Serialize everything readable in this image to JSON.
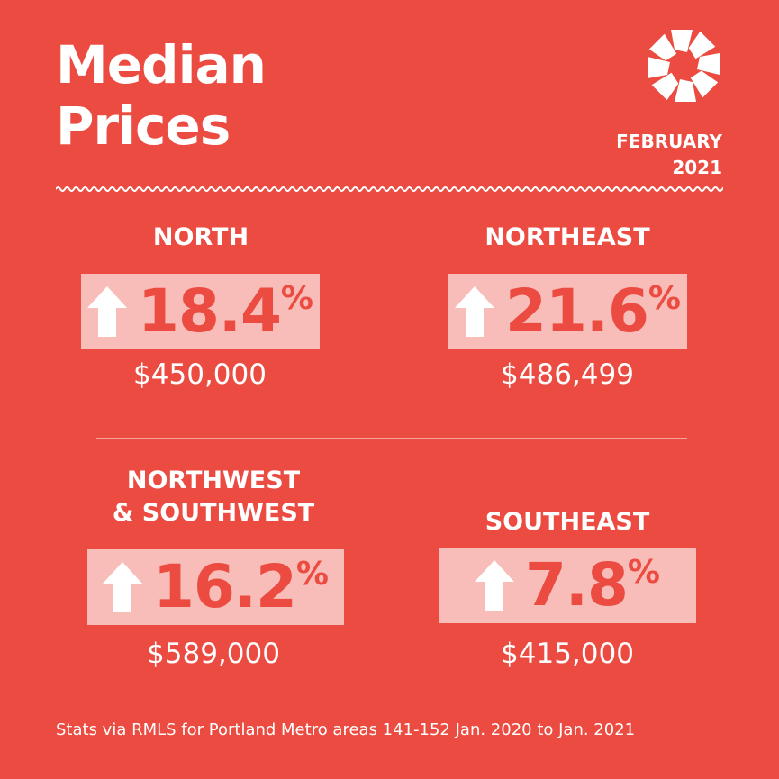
{
  "title": {
    "line1": "Median",
    "line2": "Prices"
  },
  "date": {
    "month": "FEBRUARY",
    "year": "2021"
  },
  "regions": [
    {
      "name": "NORTH",
      "change": "18.4",
      "percent_sign": "%",
      "price": "$450,000"
    },
    {
      "name": "NORTHEAST",
      "change": "21.6",
      "percent_sign": "%",
      "price": "$486,499"
    },
    {
      "name_line1": "NORTHWEST",
      "name_line2": "& SOUTHWEST",
      "change": "16.2",
      "percent_sign": "%",
      "price": "$589,000"
    },
    {
      "name": "SOUTHEAST",
      "change": "7.8",
      "percent_sign": "%",
      "price": "$415,000"
    }
  ],
  "footer": "Stats via RMLS for Portland Metro areas 141-152 Jan. 2020 to Jan. 2021",
  "colors": {
    "background": "#eb4b40",
    "badge": "#f8bdb8",
    "text": "#ffffff"
  },
  "icons": {
    "logo": "pinwheel-logo-icon",
    "arrow": "arrow-up-icon"
  }
}
